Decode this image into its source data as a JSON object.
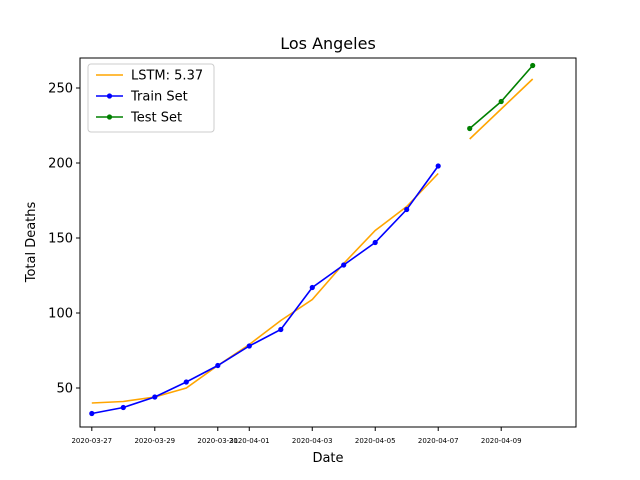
{
  "chart_data": {
    "type": "line",
    "title": "Los Angeles",
    "xlabel": "Date",
    "ylabel": "Total Deaths",
    "x_tick_labels": [
      "2020-03-27",
      "2020-03-29",
      "2020-03-31",
      "2020-04-01",
      "2020-04-03",
      "2020-04-05",
      "2020-04-07",
      "2020-04-09"
    ],
    "y_ticks": [
      50,
      100,
      150,
      200,
      250
    ],
    "ylim": [
      24,
      270
    ],
    "xlim": [
      "2020-03-26T15:00",
      "2020-04-11T09:00"
    ],
    "grid": false,
    "legend_position": "top-left",
    "series": [
      {
        "name": "LSTM: 5.37",
        "color": "#ffa500",
        "marker": false,
        "segments": [
          {
            "x": [
              "2020-03-27",
              "2020-03-28",
              "2020-03-29",
              "2020-03-30",
              "2020-03-31",
              "2020-04-01",
              "2020-04-02",
              "2020-04-03",
              "2020-04-04",
              "2020-04-05",
              "2020-04-06",
              "2020-04-07"
            ],
            "y": [
              40,
              41,
              44,
              50,
              65,
              79,
              95,
              109,
              133,
              155,
              171,
              193
            ]
          },
          {
            "x": [
              "2020-04-08",
              "2020-04-09",
              "2020-04-10"
            ],
            "y": [
              216,
              236,
              256
            ]
          }
        ]
      },
      {
        "name": "Train Set",
        "color": "#0000ff",
        "marker": true,
        "segments": [
          {
            "x": [
              "2020-03-27",
              "2020-03-28",
              "2020-03-29",
              "2020-03-30",
              "2020-03-31",
              "2020-04-01",
              "2020-04-02",
              "2020-04-03",
              "2020-04-04",
              "2020-04-05",
              "2020-04-06",
              "2020-04-07"
            ],
            "y": [
              33,
              37,
              44,
              54,
              65,
              78,
              89,
              117,
              132,
              147,
              169,
              198
            ]
          }
        ]
      },
      {
        "name": "Test Set",
        "color": "#008000",
        "marker": true,
        "segments": [
          {
            "x": [
              "2020-04-08",
              "2020-04-09",
              "2020-04-10"
            ],
            "y": [
              223,
              241,
              265
            ]
          }
        ]
      }
    ]
  }
}
